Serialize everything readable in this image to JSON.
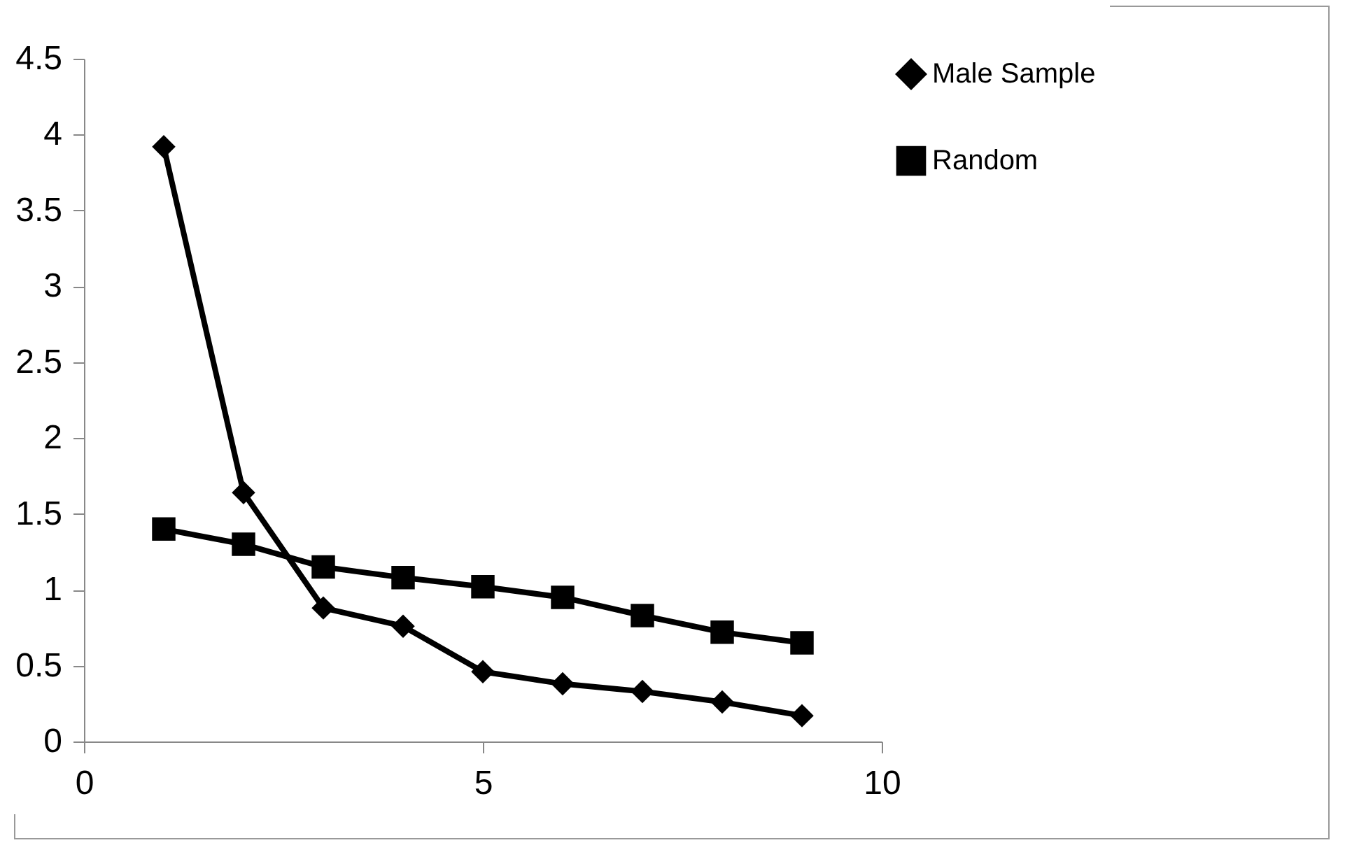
{
  "chart_data": {
    "type": "line",
    "x": [
      1,
      2,
      3,
      4,
      5,
      6,
      7,
      8,
      9
    ],
    "series": [
      {
        "name": "Male Sample",
        "color": "#000000",
        "marker": "diamond",
        "values": [
          3.92,
          1.64,
          0.88,
          0.76,
          0.46,
          0.38,
          0.33,
          0.26,
          0.17
        ]
      },
      {
        "name": "Random",
        "color": "#000000",
        "marker": "square",
        "values": [
          1.4,
          1.3,
          1.15,
          1.08,
          1.02,
          0.95,
          0.83,
          0.72,
          0.65
        ]
      }
    ],
    "xlim": [
      0,
      10
    ],
    "xticks": [
      0,
      5,
      10
    ],
    "ylim": [
      0,
      4.5
    ],
    "yticks": [
      0,
      0.5,
      1,
      1.5,
      2,
      2.5,
      3,
      3.5,
      4,
      4.5
    ],
    "grid": false,
    "legend": "right",
    "line_style": "solid"
  }
}
